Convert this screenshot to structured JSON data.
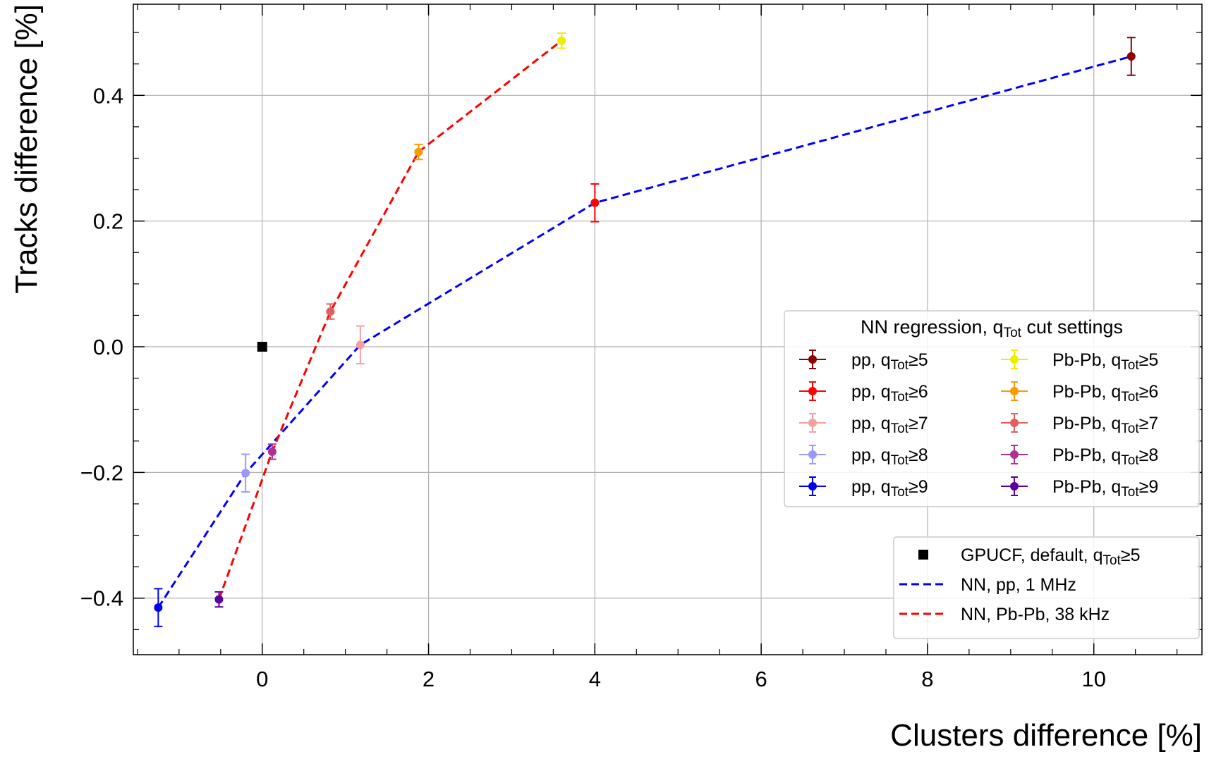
{
  "chart_data": {
    "type": "scatter",
    "xlabel": "Clusters difference [%]",
    "ylabel": "Tracks difference [%]",
    "xlim": [
      -1.55,
      11.3
    ],
    "ylim": [
      -0.49,
      0.545
    ],
    "x_ticks": [
      0,
      2,
      4,
      6,
      8,
      10
    ],
    "x_tick_labels": [
      "0",
      "2",
      "4",
      "6",
      "8",
      "10"
    ],
    "y_ticks": [
      -0.4,
      -0.2,
      0.0,
      0.2,
      0.4
    ],
    "y_tick_labels": [
      "−0.4",
      "−0.2",
      "0.0",
      "0.2",
      "0.4"
    ],
    "grid": true,
    "points": [
      {
        "group": "pp",
        "cut": "5",
        "x": 10.45,
        "y": 0.462,
        "yerr": 0.03,
        "color": "#8b0000"
      },
      {
        "group": "pp",
        "cut": "6",
        "x": 4.0,
        "y": 0.229,
        "yerr": 0.03,
        "color": "#ff0000"
      },
      {
        "group": "pp",
        "cut": "7",
        "x": 1.18,
        "y": 0.003,
        "yerr": 0.03,
        "color": "#f4a0a0"
      },
      {
        "group": "pp",
        "cut": "8",
        "x": -0.2,
        "y": -0.201,
        "yerr": 0.03,
        "color": "#9999ff"
      },
      {
        "group": "pp",
        "cut": "9",
        "x": -1.25,
        "y": -0.415,
        "yerr": 0.03,
        "color": "#0000ee"
      },
      {
        "group": "Pb-Pb",
        "cut": "5",
        "x": 3.6,
        "y": 0.487,
        "yerr": 0.012,
        "color": "#eeee00"
      },
      {
        "group": "Pb-Pb",
        "cut": "6",
        "x": 1.88,
        "y": 0.31,
        "yerr": 0.012,
        "color": "#ff9900"
      },
      {
        "group": "Pb-Pb",
        "cut": "7",
        "x": 0.82,
        "y": 0.056,
        "yerr": 0.012,
        "color": "#e06060"
      },
      {
        "group": "Pb-Pb",
        "cut": "8",
        "x": 0.12,
        "y": -0.167,
        "yerr": 0.012,
        "color": "#b03090"
      },
      {
        "group": "Pb-Pb",
        "cut": "9",
        "x": -0.52,
        "y": -0.402,
        "yerr": 0.012,
        "color": "#5a00a0"
      }
    ],
    "reference_point": {
      "x": 0.0,
      "y": 0.0,
      "color": "#000000"
    },
    "lines": [
      {
        "name": "NN, pp, 1 MHz",
        "color": "#0000ff",
        "points": [
          [
            -1.25,
            -0.415
          ],
          [
            -0.2,
            -0.201
          ],
          [
            1.18,
            0.003
          ],
          [
            4.0,
            0.229
          ],
          [
            10.45,
            0.462
          ]
        ]
      },
      {
        "name": "NN, Pb-Pb, 38 kHz",
        "color": "#ff0000",
        "points": [
          [
            -0.52,
            -0.402
          ],
          [
            0.12,
            -0.167
          ],
          [
            0.82,
            0.056
          ],
          [
            1.88,
            0.31
          ],
          [
            3.6,
            0.487
          ]
        ]
      }
    ],
    "legend1": {
      "title_pre": "NN regression, q",
      "title_sub": "Tot",
      "title_post": " cut settings",
      "placement": "right",
      "entries": [
        {
          "label": "pp, q",
          "sub": "Tot",
          "cut": "≥5",
          "color": "#8b0000"
        },
        {
          "label": "pp, q",
          "sub": "Tot",
          "cut": "≥6",
          "color": "#ff0000"
        },
        {
          "label": "pp, q",
          "sub": "Tot",
          "cut": "≥7",
          "color": "#f4a0a0"
        },
        {
          "label": "pp, q",
          "sub": "Tot",
          "cut": "≥8",
          "color": "#9999ff"
        },
        {
          "label": "pp, q",
          "sub": "Tot",
          "cut": "≥9",
          "color": "#0000ee"
        },
        {
          "label": "Pb-Pb, q",
          "sub": "Tot",
          "cut": "≥5",
          "color": "#eeee00"
        },
        {
          "label": "Pb-Pb, q",
          "sub": "Tot",
          "cut": "≥6",
          "color": "#ff9900"
        },
        {
          "label": "Pb-Pb, q",
          "sub": "Tot",
          "cut": "≥7",
          "color": "#e06060"
        },
        {
          "label": "Pb-Pb, q",
          "sub": "Tot",
          "cut": "≥8",
          "color": "#b03090"
        },
        {
          "label": "Pb-Pb, q",
          "sub": "Tot",
          "cut": "≥9",
          "color": "#5a00a0"
        }
      ]
    },
    "legend2": {
      "placement": "lower right",
      "entries": [
        {
          "kind": "square",
          "label": "GPUCF, default, q",
          "sub": "Tot",
          "cut": "≥5",
          "color": "#000000"
        },
        {
          "kind": "dash",
          "label": "NN, pp, 1 MHz",
          "color": "#0000ff"
        },
        {
          "kind": "dash",
          "label": "NN, Pb-Pb, 38 kHz",
          "color": "#ff0000"
        }
      ]
    }
  }
}
